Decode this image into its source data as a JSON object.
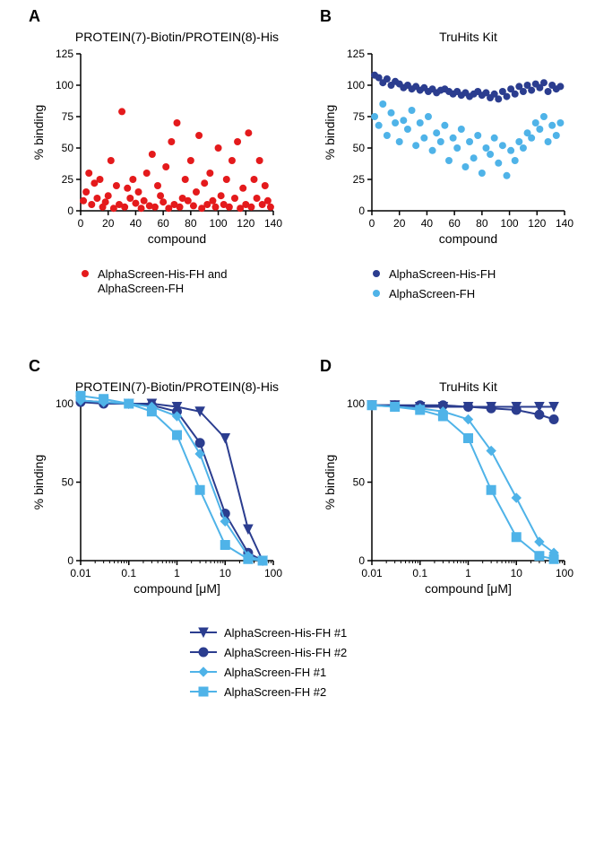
{
  "panelA": {
    "label": "A",
    "title": "PROTEIN(7)-Biotin/PROTEIN(8)-His",
    "xlabel": "compound",
    "ylabel": "% binding",
    "xlim": [
      0,
      140
    ],
    "xtick_step": 20,
    "ylim": [
      0,
      125
    ],
    "ytick_step": 25,
    "series": [
      {
        "name": "AlphaScreen-His-FH and AlphaScreen-FH",
        "color": "#e41a1c",
        "marker": "circle",
        "marker_size": 4,
        "points": [
          [
            2,
            8
          ],
          [
            4,
            15
          ],
          [
            6,
            30
          ],
          [
            8,
            5
          ],
          [
            10,
            22
          ],
          [
            12,
            10
          ],
          [
            14,
            25
          ],
          [
            16,
            3
          ],
          [
            18,
            7
          ],
          [
            20,
            12
          ],
          [
            22,
            40
          ],
          [
            24,
            2
          ],
          [
            26,
            20
          ],
          [
            28,
            5
          ],
          [
            30,
            79
          ],
          [
            32,
            3
          ],
          [
            34,
            18
          ],
          [
            36,
            10
          ],
          [
            38,
            25
          ],
          [
            40,
            6
          ],
          [
            42,
            15
          ],
          [
            44,
            2
          ],
          [
            46,
            8
          ],
          [
            48,
            30
          ],
          [
            50,
            4
          ],
          [
            52,
            45
          ],
          [
            54,
            3
          ],
          [
            56,
            20
          ],
          [
            58,
            12
          ],
          [
            60,
            7
          ],
          [
            62,
            35
          ],
          [
            64,
            2
          ],
          [
            66,
            55
          ],
          [
            68,
            5
          ],
          [
            70,
            70
          ],
          [
            72,
            3
          ],
          [
            74,
            10
          ],
          [
            76,
            25
          ],
          [
            78,
            8
          ],
          [
            80,
            40
          ],
          [
            82,
            4
          ],
          [
            84,
            15
          ],
          [
            86,
            60
          ],
          [
            88,
            2
          ],
          [
            90,
            22
          ],
          [
            92,
            5
          ],
          [
            94,
            30
          ],
          [
            96,
            8
          ],
          [
            98,
            3
          ],
          [
            100,
            50
          ],
          [
            102,
            12
          ],
          [
            104,
            5
          ],
          [
            106,
            25
          ],
          [
            108,
            3
          ],
          [
            110,
            40
          ],
          [
            112,
            10
          ],
          [
            114,
            55
          ],
          [
            116,
            2
          ],
          [
            118,
            18
          ],
          [
            120,
            5
          ],
          [
            122,
            62
          ],
          [
            124,
            3
          ],
          [
            126,
            25
          ],
          [
            128,
            10
          ],
          [
            130,
            40
          ],
          [
            132,
            5
          ],
          [
            134,
            20
          ],
          [
            136,
            8
          ],
          [
            138,
            3
          ]
        ]
      }
    ],
    "legend": "AlphaScreen-His-FH and\nAlphaScreen-FH"
  },
  "panelB": {
    "label": "B",
    "title": "TruHits Kit",
    "xlabel": "compound",
    "ylabel": "% binding",
    "xlim": [
      0,
      140
    ],
    "xtick_step": 20,
    "ylim": [
      0,
      125
    ],
    "ytick_step": 25,
    "series": [
      {
        "name": "AlphaScreen-His-FH",
        "color": "#2b3d8f",
        "marker": "circle",
        "marker_size": 4,
        "points": [
          [
            2,
            108
          ],
          [
            5,
            106
          ],
          [
            8,
            102
          ],
          [
            11,
            105
          ],
          [
            14,
            100
          ],
          [
            17,
            103
          ],
          [
            20,
            101
          ],
          [
            23,
            98
          ],
          [
            26,
            100
          ],
          [
            29,
            97
          ],
          [
            32,
            99
          ],
          [
            35,
            96
          ],
          [
            38,
            98
          ],
          [
            41,
            95
          ],
          [
            44,
            97
          ],
          [
            47,
            94
          ],
          [
            50,
            96
          ],
          [
            53,
            97
          ],
          [
            56,
            95
          ],
          [
            59,
            93
          ],
          [
            62,
            95
          ],
          [
            65,
            92
          ],
          [
            68,
            94
          ],
          [
            71,
            91
          ],
          [
            74,
            93
          ],
          [
            77,
            95
          ],
          [
            80,
            92
          ],
          [
            83,
            94
          ],
          [
            86,
            90
          ],
          [
            89,
            93
          ],
          [
            92,
            89
          ],
          [
            95,
            95
          ],
          [
            98,
            91
          ],
          [
            101,
            97
          ],
          [
            104,
            93
          ],
          [
            107,
            99
          ],
          [
            110,
            95
          ],
          [
            113,
            100
          ],
          [
            116,
            96
          ],
          [
            119,
            101
          ],
          [
            122,
            98
          ],
          [
            125,
            102
          ],
          [
            128,
            95
          ],
          [
            131,
            100
          ],
          [
            134,
            97
          ],
          [
            137,
            99
          ]
        ]
      },
      {
        "name": "AlphaScreen-FH",
        "color": "#4fb3e8",
        "marker": "circle",
        "marker_size": 4,
        "points": [
          [
            2,
            75
          ],
          [
            5,
            68
          ],
          [
            8,
            85
          ],
          [
            11,
            60
          ],
          [
            14,
            78
          ],
          [
            17,
            70
          ],
          [
            20,
            55
          ],
          [
            23,
            72
          ],
          [
            26,
            65
          ],
          [
            29,
            80
          ],
          [
            32,
            52
          ],
          [
            35,
            70
          ],
          [
            38,
            58
          ],
          [
            41,
            75
          ],
          [
            44,
            48
          ],
          [
            47,
            62
          ],
          [
            50,
            55
          ],
          [
            53,
            68
          ],
          [
            56,
            40
          ],
          [
            59,
            58
          ],
          [
            62,
            50
          ],
          [
            65,
            65
          ],
          [
            68,
            35
          ],
          [
            71,
            55
          ],
          [
            74,
            42
          ],
          [
            77,
            60
          ],
          [
            80,
            30
          ],
          [
            83,
            50
          ],
          [
            86,
            45
          ],
          [
            89,
            58
          ],
          [
            92,
            38
          ],
          [
            95,
            52
          ],
          [
            98,
            28
          ],
          [
            101,
            48
          ],
          [
            104,
            40
          ],
          [
            107,
            55
          ],
          [
            110,
            50
          ],
          [
            113,
            62
          ],
          [
            116,
            58
          ],
          [
            119,
            70
          ],
          [
            122,
            65
          ],
          [
            125,
            75
          ],
          [
            128,
            55
          ],
          [
            131,
            68
          ],
          [
            134,
            60
          ],
          [
            137,
            70
          ]
        ]
      }
    ]
  },
  "panelC": {
    "label": "C",
    "title": "PROTEIN(7)-Biotin/PROTEIN(8)-His",
    "xlabel": "compound [μM]",
    "ylabel": "% binding",
    "xscale": "log",
    "xlim": [
      0.01,
      100
    ],
    "xticks": [
      0.01,
      0.1,
      1,
      10,
      100
    ],
    "xticklabels": [
      "0.01",
      "0.1",
      "1",
      "10",
      "100"
    ],
    "ylim": [
      0,
      100
    ],
    "ytick_step": 50,
    "curves": [
      {
        "name": "AlphaScreen-His-FH #1",
        "color": "#2b3d8f",
        "marker": "triangle-down",
        "marker_size": 5,
        "x": [
          0.01,
          0.03,
          0.1,
          0.3,
          1,
          3,
          10,
          30,
          60
        ],
        "y": [
          102,
          101,
          100,
          100,
          98,
          95,
          78,
          20,
          0
        ]
      },
      {
        "name": "AlphaScreen-His-FH #2",
        "color": "#2b3d8f",
        "marker": "circle",
        "marker_size": 5,
        "x": [
          0.01,
          0.03,
          0.1,
          0.3,
          1,
          3,
          10,
          30,
          60
        ],
        "y": [
          101,
          100,
          100,
          99,
          95,
          75,
          30,
          5,
          0
        ]
      },
      {
        "name": "AlphaScreen-FH #1",
        "color": "#4fb3e8",
        "marker": "diamond",
        "marker_size": 5,
        "x": [
          0.01,
          0.03,
          0.1,
          0.3,
          1,
          3,
          10,
          30,
          60
        ],
        "y": [
          102,
          101,
          100,
          98,
          92,
          68,
          25,
          3,
          0
        ]
      },
      {
        "name": "AlphaScreen-FH #2",
        "color": "#4fb3e8",
        "marker": "square",
        "marker_size": 5,
        "x": [
          0.01,
          0.03,
          0.1,
          0.3,
          1,
          3,
          10,
          30,
          60
        ],
        "y": [
          105,
          103,
          100,
          95,
          80,
          45,
          10,
          1,
          0
        ]
      }
    ]
  },
  "panelD": {
    "label": "D",
    "title": "TruHits Kit",
    "xlabel": "compound [μM]",
    "ylabel": "% binding",
    "xscale": "log",
    "xlim": [
      0.01,
      100
    ],
    "xticks": [
      0.01,
      0.1,
      1,
      10,
      100
    ],
    "xticklabels": [
      "0.01",
      "0.1",
      "1",
      "10",
      "100"
    ],
    "ylim": [
      0,
      100
    ],
    "ytick_step": 50,
    "curves": [
      {
        "name": "AlphaScreen-His-FH #1",
        "color": "#2b3d8f",
        "marker": "triangle-down",
        "marker_size": 5,
        "x": [
          0.01,
          0.03,
          0.1,
          0.3,
          1,
          3,
          10,
          30,
          60
        ],
        "y": [
          99,
          99,
          98,
          98,
          98,
          98,
          98,
          98,
          98
        ]
      },
      {
        "name": "AlphaScreen-His-FH #2",
        "color": "#2b3d8f",
        "marker": "circle",
        "marker_size": 5,
        "x": [
          0.01,
          0.03,
          0.1,
          0.3,
          1,
          3,
          10,
          30,
          60
        ],
        "y": [
          99,
          99,
          99,
          99,
          98,
          97,
          96,
          93,
          90
        ]
      },
      {
        "name": "AlphaScreen-FH #1",
        "color": "#4fb3e8",
        "marker": "diamond",
        "marker_size": 5,
        "x": [
          0.01,
          0.03,
          0.1,
          0.3,
          1,
          3,
          10,
          30,
          60
        ],
        "y": [
          99,
          98,
          97,
          95,
          90,
          70,
          40,
          12,
          5
        ]
      },
      {
        "name": "AlphaScreen-FH #2",
        "color": "#4fb3e8",
        "marker": "square",
        "marker_size": 5,
        "x": [
          0.01,
          0.03,
          0.1,
          0.3,
          1,
          3,
          10,
          30,
          60
        ],
        "y": [
          99,
          98,
          96,
          92,
          78,
          45,
          15,
          3,
          1
        ]
      }
    ]
  },
  "bottom_legend": [
    {
      "label": "AlphaScreen-His-FH  #1",
      "color": "#2b3d8f",
      "marker": "triangle-down"
    },
    {
      "label": "AlphaScreen-His-FH  #2",
      "color": "#2b3d8f",
      "marker": "circle"
    },
    {
      "label": "AlphaScreen-FH  #1",
      "color": "#4fb3e8",
      "marker": "diamond"
    },
    {
      "label": "AlphaScreen-FH  #2",
      "color": "#4fb3e8",
      "marker": "square"
    }
  ],
  "colors": {
    "axis": "#000000",
    "text": "#000000",
    "bg": "#ffffff"
  },
  "fonts": {
    "panel_label_size": 18,
    "title_size": 14,
    "axis_label_size": 14,
    "tick_size": 12,
    "legend_size": 13
  }
}
